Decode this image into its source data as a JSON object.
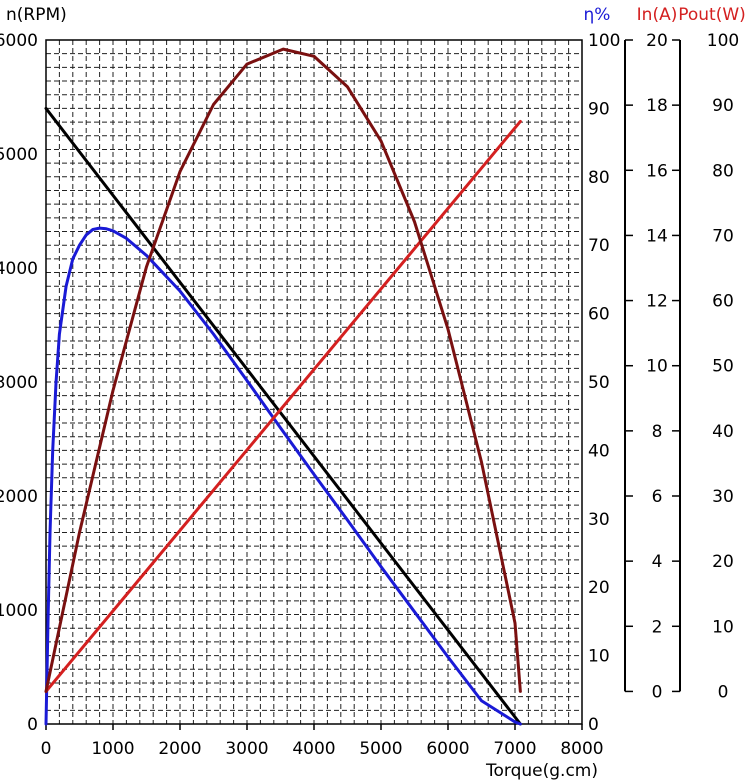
{
  "chart_data": {
    "type": "line",
    "xlabel": "Torque(g.cm)",
    "xlim": [
      0,
      8000
    ],
    "x_ticks": [
      "0",
      "1000",
      "2000",
      "3000",
      "4000",
      "5000",
      "6000",
      "7000",
      "8000"
    ],
    "grid": true,
    "axes": [
      {
        "key": "n",
        "title": "n(RPM)",
        "color": "#000000",
        "position": "left",
        "range": [
          0,
          6000
        ],
        "ticks": [
          "0",
          "1000",
          "2000",
          "3000",
          "4000",
          "5000",
          "6000"
        ]
      },
      {
        "key": "eta",
        "title": "η%",
        "color": "#1a1ad6",
        "position": "right-1",
        "range": [
          0,
          100
        ],
        "ticks": [
          "0",
          "10",
          "20",
          "30",
          "40",
          "50",
          "60",
          "70",
          "80",
          "90",
          "100"
        ]
      },
      {
        "key": "in",
        "title": "In(A)",
        "color": "#d42020",
        "position": "right-2",
        "range": [
          -1,
          20
        ],
        "ticks": [
          "0",
          "2",
          "4",
          "6",
          "8",
          "10",
          "12",
          "14",
          "16",
          "18",
          "20"
        ]
      },
      {
        "key": "pout",
        "title": "Pout(W)",
        "color": "#d42020",
        "position": "right-3",
        "range": [
          -5,
          100
        ],
        "ticks": [
          "0",
          "10",
          "20",
          "30",
          "40",
          "50",
          "60",
          "70",
          "80",
          "90",
          "100"
        ]
      }
    ],
    "series": [
      {
        "axis": "n",
        "color": "#000000",
        "x": [
          0,
          7080
        ],
        "y": [
          5400,
          0
        ]
      },
      {
        "axis": "eta",
        "color": "#1a1ad6",
        "x": [
          0,
          30,
          60,
          100,
          150,
          200,
          300,
          400,
          500,
          600,
          700,
          800,
          900,
          1000,
          1200,
          1500,
          2000,
          2500,
          3000,
          3500,
          4000,
          4500,
          5000,
          5500,
          6000,
          6500,
          7000,
          7080
        ],
        "y": [
          0,
          15,
          28,
          40,
          50,
          57,
          64,
          68,
          70,
          71.5,
          72.3,
          72.5,
          72.4,
          72.1,
          71,
          68.5,
          63.3,
          57,
          50.2,
          43.3,
          36.5,
          29.8,
          23,
          16.4,
          9.8,
          3.4,
          0.3,
          0
        ]
      },
      {
        "axis": "in",
        "color": "#d42020",
        "x": [
          0,
          7080
        ],
        "y": [
          0,
          17.5
        ]
      },
      {
        "axis": "pout",
        "color": "#7a1010",
        "x": [
          0,
          500,
          1000,
          1500,
          2000,
          2500,
          3000,
          3540,
          4000,
          4500,
          5000,
          5500,
          6000,
          6500,
          7000,
          7080
        ],
        "y": [
          0,
          24.4,
          46.2,
          65.2,
          79.8,
          90.1,
          96.3,
          98.6,
          97.5,
          92.8,
          84.5,
          72.1,
          55.6,
          35.2,
          10.5,
          0
        ]
      }
    ]
  }
}
